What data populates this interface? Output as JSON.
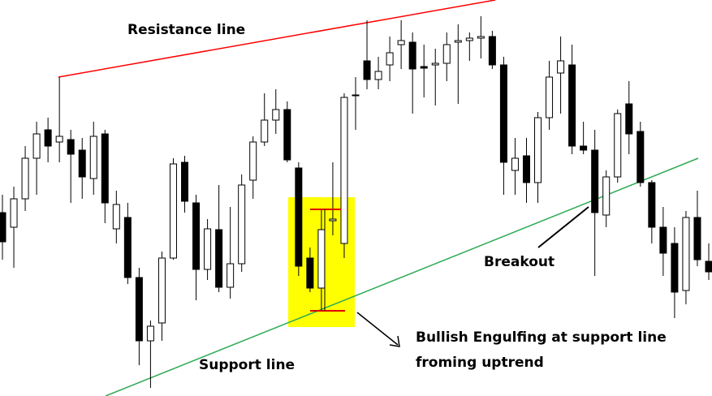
{
  "chart_data": {
    "type": "candlestick",
    "annotations": [
      "Resistance line",
      "Support line",
      "Breakout",
      "Bullish Engulfing at support line",
      "froming uptrend"
    ],
    "open": [
      226,
      208,
      243,
      293,
      328,
      313,
      316,
      303,
      268,
      323,
      206,
      220,
      146,
      68,
      90,
      170,
      288,
      238,
      156,
      205,
      134,
      163,
      266,
      313,
      340,
      353,
      281,
      170,
      133,
      216,
      188,
      370,
      413,
      390,
      408,
      433,
      436,
      406,
      408,
      410,
      436,
      438,
      441,
      443,
      408,
      278,
      296,
      263,
      343,
      398,
      408,
      308,
      303,
      223,
      270,
      360,
      326,
      263,
      208,
      188,
      130,
      220,
      166
    ],
    "high": [
      248,
      258,
      308,
      338,
      343,
      393,
      328,
      318,
      338,
      328,
      253,
      238,
      158,
      93,
      178,
      293,
      296,
      248,
      218,
      260,
      233,
      273,
      320,
      373,
      378,
      363,
      288,
      183,
      230,
      288,
      373,
      393,
      463,
      418,
      443,
      463,
      448,
      433,
      428,
      448,
      458,
      448,
      468,
      450,
      418,
      318,
      318,
      350,
      413,
      443,
      433,
      338,
      328,
      278,
      353,
      388,
      338,
      266,
      233,
      208,
      228,
      253,
      188
    ],
    "low": [
      168,
      158,
      228,
      248,
      288,
      288,
      238,
      243,
      248,
      213,
      188,
      138,
      38,
      10,
      68,
      168,
      226,
      118,
      143,
      128,
      120,
      153,
      243,
      308,
      323,
      288,
      148,
      128,
      106,
      198,
      170,
      328,
      378,
      378,
      388,
      403,
      348,
      368,
      358,
      388,
      360,
      413,
      416,
      403,
      248,
      248,
      238,
      238,
      328,
      348,
      298,
      298,
      148,
      208,
      263,
      298,
      258,
      188,
      148,
      96,
      113,
      160,
      143
    ],
    "close": [
      190,
      243,
      293,
      323,
      308,
      320,
      298,
      270,
      320,
      238,
      236,
      146,
      68,
      86,
      170,
      286,
      240,
      156,
      206,
      134,
      163,
      260,
      313,
      340,
      353,
      291,
      160,
      133,
      205,
      218,
      368,
      371,
      390,
      400,
      423,
      438,
      403,
      404,
      410,
      433,
      438,
      441,
      443,
      408,
      288,
      293,
      263,
      343,
      393,
      413,
      308,
      303,
      226,
      270,
      348,
      323,
      263,
      208,
      176,
      128,
      220,
      168,
      153
    ],
    "up_color": "#ffffff",
    "down_color": "#000000",
    "ylim": [
      0,
      488
    ]
  }
}
